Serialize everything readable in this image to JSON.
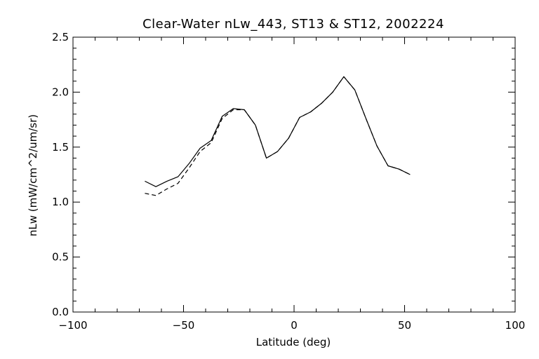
{
  "chart_data": {
    "type": "line",
    "title": "Clear-Water nLw_443, ST13 & ST12, 2002224",
    "xlabel": "Latitude (deg)",
    "ylabel": "nLw (mW/cm^2/um/sr)",
    "xlim": [
      -100,
      100
    ],
    "ylim": [
      0.0,
      2.5
    ],
    "x_ticks": [
      -100,
      -50,
      0,
      50,
      100
    ],
    "y_ticks": [
      0.0,
      0.5,
      1.0,
      1.5,
      2.0,
      2.5
    ],
    "x_tick_labels": [
      "−100",
      "−50",
      "0",
      "50",
      "100"
    ],
    "y_tick_labels": [
      "0.0",
      "0.5",
      "1.0",
      "1.5",
      "2.0",
      "2.5"
    ],
    "x_minor_step": 10,
    "y_minor_step": 0.1,
    "grid": false,
    "legend": "none",
    "series": [
      {
        "line_style": "solid",
        "color": "#000000",
        "points": [
          [
            -67.5,
            1.19
          ],
          [
            -62.5,
            1.14
          ],
          [
            -57.5,
            1.19
          ],
          [
            -52.5,
            1.23
          ],
          [
            -47.5,
            1.35
          ],
          [
            -42.5,
            1.49
          ],
          [
            -37.5,
            1.56
          ],
          [
            -32.5,
            1.78
          ],
          [
            -27.5,
            1.85
          ],
          [
            -22.5,
            1.84
          ],
          [
            -17.5,
            1.7
          ],
          [
            -12.5,
            1.4
          ],
          [
            -7.5,
            1.46
          ],
          [
            -2.5,
            1.58
          ],
          [
            2.5,
            1.77
          ],
          [
            7.5,
            1.82
          ],
          [
            12.5,
            1.9
          ],
          [
            17.5,
            2.0
          ],
          [
            22.5,
            2.14
          ],
          [
            27.5,
            2.02
          ],
          [
            32.5,
            1.76
          ],
          [
            37.5,
            1.51
          ],
          [
            42.5,
            1.33
          ],
          [
            47.5,
            1.3
          ],
          [
            52.5,
            1.25
          ]
        ]
      },
      {
        "line_style": "dashed",
        "color": "#000000",
        "points": [
          [
            -67.5,
            1.08
          ],
          [
            -62.5,
            1.06
          ],
          [
            -57.5,
            1.12
          ],
          [
            -52.5,
            1.17
          ],
          [
            -47.5,
            1.31
          ],
          [
            -42.5,
            1.46
          ],
          [
            -37.5,
            1.54
          ],
          [
            -32.5,
            1.76
          ],
          [
            -27.5,
            1.84
          ],
          [
            -22.5,
            1.84
          ],
          [
            -17.5,
            1.7
          ],
          [
            -12.5,
            1.4
          ],
          [
            -7.5,
            1.46
          ],
          [
            -2.5,
            1.58
          ],
          [
            2.5,
            1.77
          ],
          [
            7.5,
            1.82
          ],
          [
            12.5,
            1.9
          ],
          [
            17.5,
            2.0
          ],
          [
            22.5,
            2.14
          ],
          [
            27.5,
            2.02
          ],
          [
            32.5,
            1.76
          ],
          [
            37.5,
            1.51
          ],
          [
            42.5,
            1.33
          ],
          [
            47.5,
            1.3
          ],
          [
            52.5,
            1.25
          ]
        ]
      }
    ]
  }
}
